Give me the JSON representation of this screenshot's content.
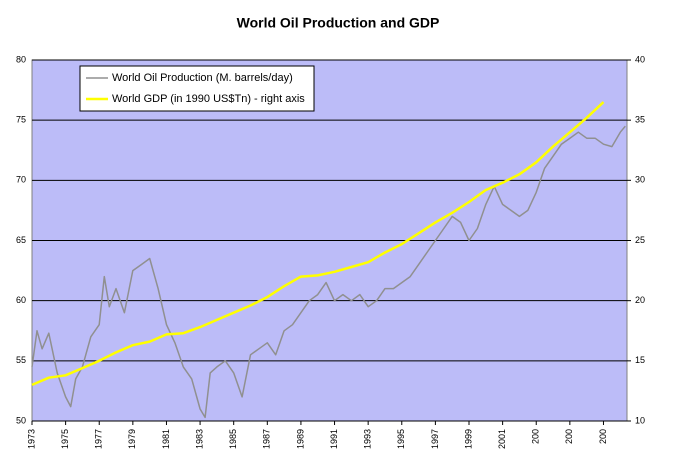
{
  "chart_data": {
    "type": "line",
    "title": "World Oil Production and GDP",
    "xlim": [
      1973,
      2008.4
    ],
    "xticks": [
      1973,
      1975,
      1977,
      1979,
      1981,
      1983,
      1985,
      1987,
      1989,
      1991,
      1993,
      1995,
      1997,
      1999,
      2001,
      {
        "value": 2003,
        "label": "200"
      },
      {
        "value": 2005,
        "label": "200"
      },
      {
        "value": 2007,
        "label": "200"
      }
    ],
    "ylim": [
      50,
      80
    ],
    "yticks": [
      50,
      55,
      60,
      65,
      70,
      75,
      80
    ],
    "y2lim": [
      10,
      40
    ],
    "y2ticks": [
      10,
      15,
      20,
      25,
      30,
      35,
      40
    ],
    "grid": true,
    "legend": "upper left",
    "background": "#bcbcf8",
    "series": [
      {
        "name": "World Oil Production (M. barrels/day)",
        "color": "#909090",
        "x": [
          1973.0,
          1973.3,
          1973.6,
          1974.0,
          1974.5,
          1975.0,
          1975.3,
          1975.6,
          1976.0,
          1976.5,
          1977.0,
          1977.3,
          1977.6,
          1978.0,
          1978.5,
          1979.0,
          1979.5,
          1980.0,
          1980.5,
          1981.0,
          1981.5,
          1982.0,
          1982.5,
          1983.0,
          1983.3,
          1983.6,
          1984.0,
          1984.5,
          1985.0,
          1985.5,
          1986.0,
          1986.5,
          1987.0,
          1987.5,
          1988.0,
          1988.5,
          1989.0,
          1989.5,
          1990.0,
          1990.5,
          1991.0,
          1991.5,
          1992.0,
          1992.5,
          1993.0,
          1993.5,
          1994.0,
          1994.5,
          1995.0,
          1995.5,
          1996.0,
          1996.5,
          1997.0,
          1997.5,
          1998.0,
          1998.5,
          1999.0,
          1999.5,
          2000.0,
          2000.5,
          2001.0,
          2001.5,
          2002.0,
          2002.5,
          2003.0,
          2003.5,
          2004.0,
          2004.5,
          2005.0,
          2005.5,
          2006.0,
          2006.5,
          2007.0,
          2007.5,
          2008.0,
          2008.3
        ],
        "values": [
          54.5,
          57.5,
          56,
          57.3,
          54,
          52,
          51.2,
          53.5,
          54.5,
          57,
          58,
          62,
          59.5,
          61,
          59,
          62.5,
          63,
          63.5,
          61,
          58,
          56.5,
          54.5,
          53.5,
          51,
          50.3,
          54,
          54.5,
          55,
          54,
          52,
          55.5,
          56,
          56.5,
          55.5,
          57.5,
          58,
          59,
          60,
          60.5,
          61.5,
          60,
          60.5,
          60,
          60.5,
          59.5,
          60,
          61,
          61,
          61.5,
          62,
          63,
          64,
          65,
          66,
          67,
          66.5,
          65,
          66,
          68,
          69.5,
          68,
          67.5,
          67,
          67.5,
          69,
          71,
          72,
          73,
          73.5,
          74,
          73.5,
          73.5,
          73,
          72.8,
          74,
          74.5
        ]
      },
      {
        "name": "World GDP (in 1990 US$Tn) - right axis",
        "color": "#ffff00",
        "axis": "y2",
        "x": [
          1973,
          1974,
          1975,
          1976,
          1977,
          1978,
          1979,
          1980,
          1981,
          1982,
          1983,
          1984,
          1985,
          1986,
          1987,
          1988,
          1989,
          1990,
          1991,
          1992,
          1993,
          1994,
          1995,
          1996,
          1997,
          1998,
          1999,
          2000,
          2001,
          2002,
          2003,
          2004,
          2005,
          2006,
          2007
        ],
        "values": [
          13,
          13.6,
          13.8,
          14.4,
          15,
          15.7,
          16.3,
          16.6,
          17.2,
          17.3,
          17.8,
          18.4,
          19,
          19.6,
          20.3,
          21.2,
          22,
          22.1,
          22.4,
          22.8,
          23.2,
          24,
          24.7,
          25.6,
          26.5,
          27.3,
          28.2,
          29.2,
          29.8,
          30.5,
          31.5,
          32.8,
          34,
          35.2,
          36.5
        ]
      }
    ]
  }
}
